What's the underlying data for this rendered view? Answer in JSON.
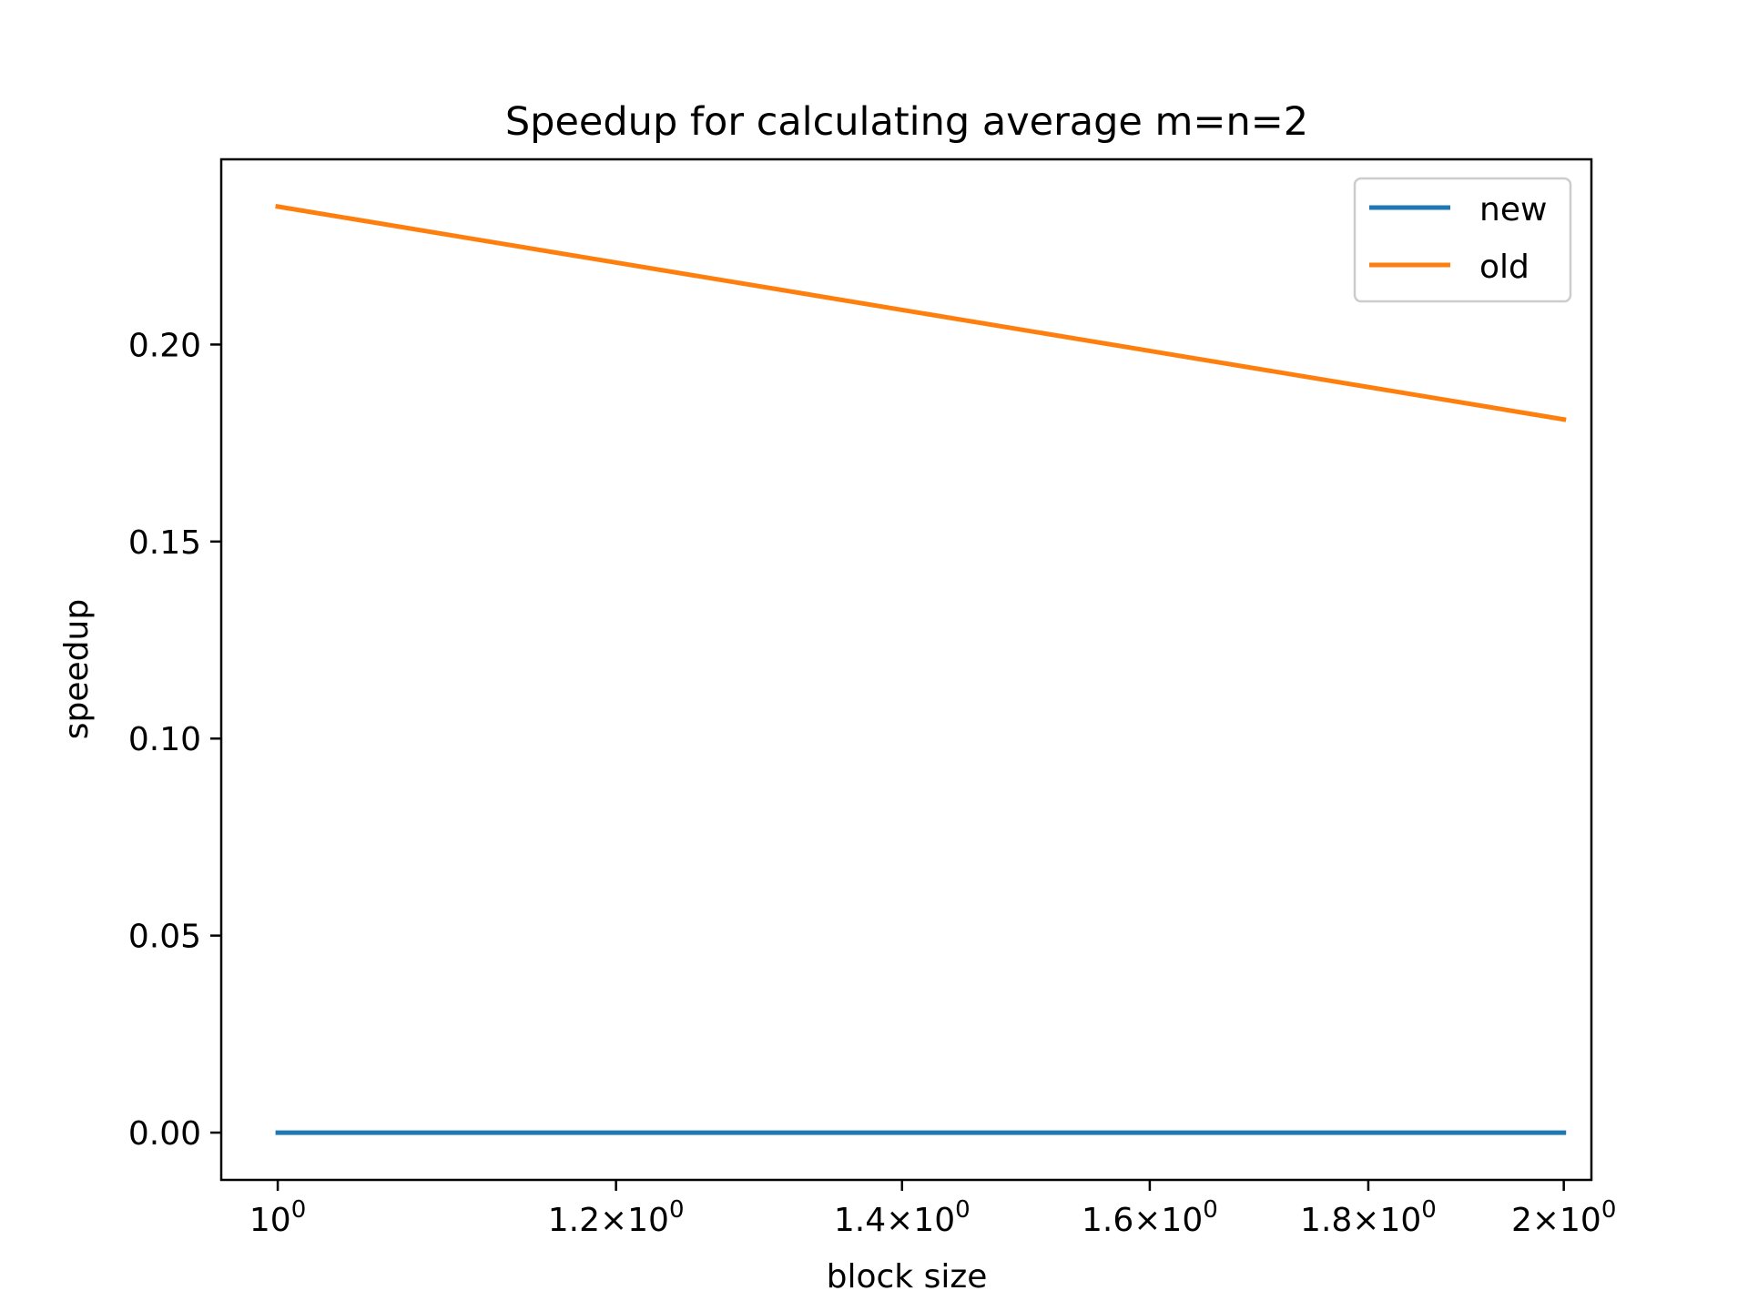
{
  "chart_data": {
    "type": "line",
    "title": "Speedup for calculating average m=n=2",
    "xlabel": "block size",
    "ylabel": "speedup",
    "xscale": "log",
    "xlim": [
      0.97,
      2.03
    ],
    "ylim": [
      -0.012,
      0.247
    ],
    "x": [
      1,
      2
    ],
    "series": [
      {
        "name": "new",
        "color": "#1f77b4",
        "values": [
          0.0,
          0.0
        ]
      },
      {
        "name": "old",
        "color": "#ff7f0e",
        "values": [
          0.235,
          0.181
        ]
      }
    ],
    "xticks": [
      {
        "value": 1.0,
        "base": "10",
        "exp": "0"
      },
      {
        "value": 1.2,
        "base": "1.2×10",
        "exp": "0"
      },
      {
        "value": 1.4,
        "base": "1.4×10",
        "exp": "0"
      },
      {
        "value": 1.6,
        "base": "1.6×10",
        "exp": "0"
      },
      {
        "value": 1.8,
        "base": "1.8×10",
        "exp": "0"
      },
      {
        "value": 2.0,
        "base": "2×10",
        "exp": "0"
      }
    ],
    "yticks": [
      {
        "value": 0.0,
        "label": "0.00"
      },
      {
        "value": 0.05,
        "label": "0.05"
      },
      {
        "value": 0.1,
        "label": "0.10"
      },
      {
        "value": 0.15,
        "label": "0.15"
      },
      {
        "value": 0.2,
        "label": "0.20"
      }
    ],
    "legend": "top-right",
    "grid": false
  }
}
